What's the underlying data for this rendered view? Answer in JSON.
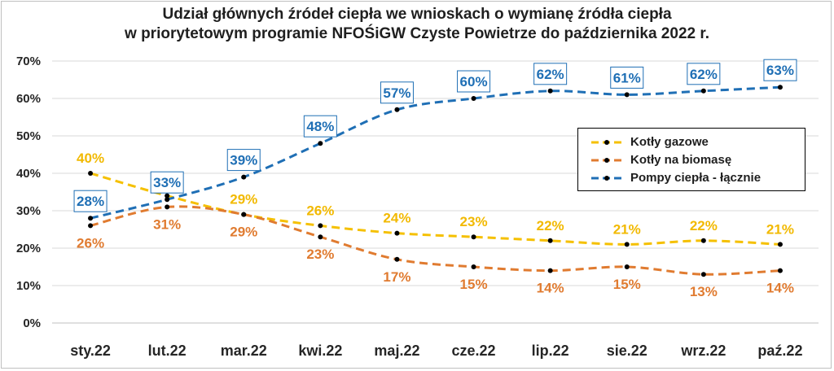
{
  "title_line1": "Udział głównych źródeł ciepła we wnioskach o wymianę źródła ciepła",
  "title_line2": "w priorytetowym programie NFOŚiGW Czyste Powietrze do października 2022 r.",
  "chart_data": {
    "type": "line",
    "categories": [
      "sty.22",
      "lut.22",
      "mar.22",
      "kwi.22",
      "maj.22",
      "cze.22",
      "lip.22",
      "sie.22",
      "wrz.22",
      "paź.22"
    ],
    "ylim": [
      0,
      70
    ],
    "yticks": [
      0,
      10,
      20,
      30,
      40,
      50,
      60,
      70
    ],
    "ytick_labels": [
      "0%",
      "10%",
      "20%",
      "30%",
      "40%",
      "50%",
      "60%",
      "70%"
    ],
    "grid": true,
    "legend_position": "right",
    "series": [
      {
        "name": "Kotły gazowe",
        "color": "#f5c000",
        "values": [
          40,
          34,
          29,
          26,
          24,
          23,
          22,
          21,
          22,
          21
        ],
        "labels": [
          "40%",
          "34%",
          "29%",
          "26%",
          "24%",
          "23%",
          "22%",
          "21%",
          "22%",
          "21%"
        ]
      },
      {
        "name": "Kotły na biomasę",
        "color": "#e07b30",
        "values": [
          26,
          31,
          29,
          23,
          17,
          15,
          14,
          15,
          13,
          14
        ],
        "labels": [
          "26%",
          "31%",
          "29%",
          "23%",
          "17%",
          "15%",
          "14%",
          "15%",
          "13%",
          "14%"
        ]
      },
      {
        "name": "Pompy ciepła - łącznie",
        "color": "#1f6fb5",
        "values": [
          28,
          33,
          39,
          48,
          57,
          60,
          62,
          61,
          62,
          63
        ],
        "labels": [
          "28%",
          "33%",
          "39%",
          "48%",
          "57%",
          "60%",
          "62%",
          "61%",
          "62%",
          "63%"
        ]
      }
    ]
  }
}
